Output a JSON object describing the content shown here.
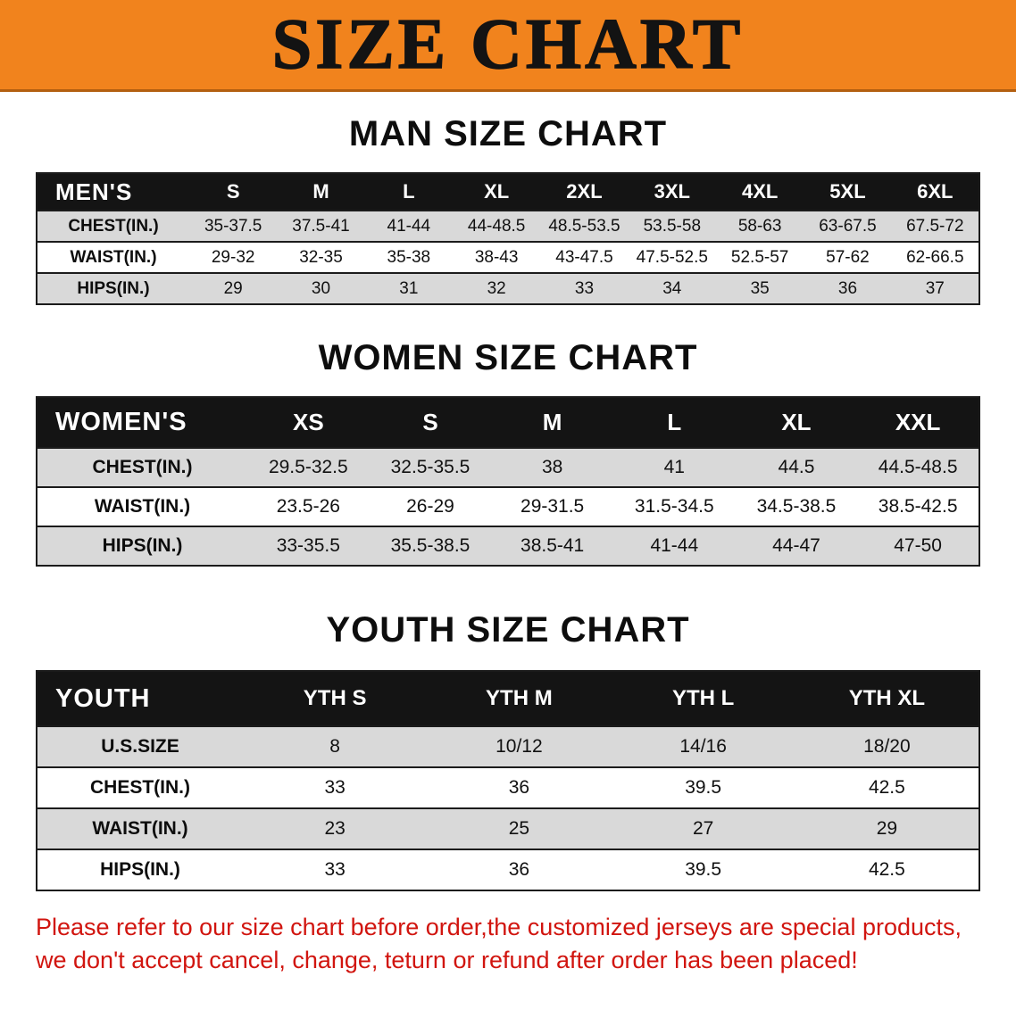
{
  "banner": {
    "title": "SIZE CHART"
  },
  "colors": {
    "banner_bg": "#F1831D",
    "header_bg": "#141414",
    "row_alt": "#D9D9D9",
    "disclaimer_red": "#D1150F"
  },
  "sections": [
    {
      "id": "men",
      "heading": "MAN SIZE CHART",
      "table": {
        "title": "MEN'S",
        "columns": [
          "S",
          "M",
          "L",
          "XL",
          "2XL",
          "3XL",
          "4XL",
          "5XL",
          "6XL"
        ],
        "rows": [
          {
            "label": "CHEST(IN.)",
            "values": [
              "35-37.5",
              "37.5-41",
              "41-44",
              "44-48.5",
              "48.5-53.5",
              "53.5-58",
              "58-63",
              "63-67.5",
              "67.5-72"
            ]
          },
          {
            "label": "WAIST(IN.)",
            "values": [
              "29-32",
              "32-35",
              "35-38",
              "38-43",
              "43-47.5",
              "47.5-52.5",
              "52.5-57",
              "57-62",
              "62-66.5"
            ]
          },
          {
            "label": "HIPS(IN.)",
            "values": [
              "29",
              "30",
              "31",
              "32",
              "33",
              "34",
              "35",
              "36",
              "37"
            ]
          }
        ]
      }
    },
    {
      "id": "women",
      "heading": "WOMEN SIZE CHART",
      "table": {
        "title": "WOMEN'S",
        "columns": [
          "XS",
          "S",
          "M",
          "L",
          "XL",
          "XXL"
        ],
        "rows": [
          {
            "label": "CHEST(IN.)",
            "values": [
              "29.5-32.5",
              "32.5-35.5",
              "38",
              "41",
              "44.5",
              "44.5-48.5"
            ]
          },
          {
            "label": "WAIST(IN.)",
            "values": [
              "23.5-26",
              "26-29",
              "29-31.5",
              "31.5-34.5",
              "34.5-38.5",
              "38.5-42.5"
            ]
          },
          {
            "label": "HIPS(IN.)",
            "values": [
              "33-35.5",
              "35.5-38.5",
              "38.5-41",
              "41-44",
              "44-47",
              "47-50"
            ]
          }
        ]
      }
    },
    {
      "id": "youth",
      "heading": "YOUTH SIZE CHART",
      "table": {
        "title": "YOUTH",
        "columns": [
          "YTH S",
          "YTH M",
          "YTH L",
          "YTH XL"
        ],
        "rows": [
          {
            "label": "U.S.SIZE",
            "values": [
              "8",
              "10/12",
              "14/16",
              "18/20"
            ]
          },
          {
            "label": "CHEST(IN.)",
            "values": [
              "33",
              "36",
              "39.5",
              "42.5"
            ]
          },
          {
            "label": "WAIST(IN.)",
            "values": [
              "23",
              "25",
              "27",
              "29"
            ]
          },
          {
            "label": "HIPS(IN.)",
            "values": [
              "33",
              "36",
              "39.5",
              "42.5"
            ]
          }
        ]
      }
    }
  ],
  "disclaimer": {
    "lines": [
      "Please refer to our size chart before order,the customized jerseys are special products,",
      "we don't accept cancel, change, teturn or refund after order has been placed!"
    ]
  }
}
